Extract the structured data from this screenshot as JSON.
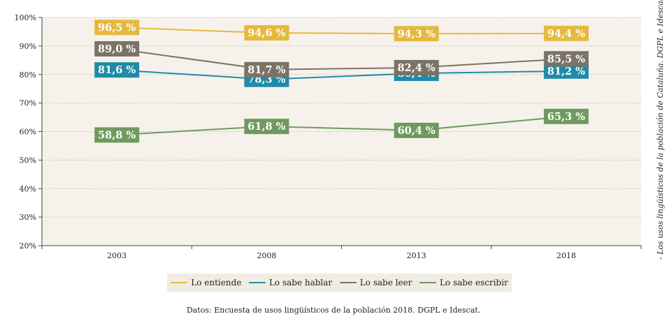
{
  "chart_data": {
    "type": "line",
    "categories": [
      "2003",
      "2008",
      "2013",
      "2018"
    ],
    "ylim": [
      20,
      100
    ],
    "yticks": [
      "20%",
      "30%",
      "40%",
      "50%",
      "60%",
      "70%",
      "80%",
      "90%",
      "100%"
    ],
    "ytick_values": [
      20,
      30,
      40,
      50,
      60,
      70,
      80,
      90,
      100
    ],
    "grid": true,
    "legend_position": "bottom",
    "series": [
      {
        "name": "Lo entiende",
        "color": "#e5b93d",
        "values": [
          96.5,
          94.6,
          94.3,
          94.4
        ],
        "labels": [
          "96,5 %",
          "94,6 %",
          "94,3 %",
          "94,4 %"
        ]
      },
      {
        "name": "Lo sabe hablar",
        "color": "#1f8ba8",
        "values": [
          81.6,
          78.3,
          80.4,
          81.2
        ],
        "labels": [
          "81,6 %",
          "78,3 %",
          "80,4 %",
          "81,2 %"
        ]
      },
      {
        "name": "Lo sabe leer",
        "color": "#7b7365",
        "values": [
          89.0,
          81.7,
          82.4,
          85.5
        ],
        "labels": [
          "89,0 %",
          "81,7 %",
          "82,4 %",
          "85,5 %"
        ]
      },
      {
        "name": "Lo sabe escribir",
        "color": "#6f9a5f",
        "values": [
          58.8,
          61.8,
          60.4,
          65.3
        ],
        "labels": [
          "58,8 %",
          "61,8 %",
          "60,4 %",
          "65,3 %"
        ]
      }
    ]
  },
  "source_note": "Datos: Encuesta de usos lingüísticos de la población 2018. DGPL e Idescat.",
  "side_note": "- Los usos lingüísticos de la población de Cataluña. DGPL e Idescat -"
}
